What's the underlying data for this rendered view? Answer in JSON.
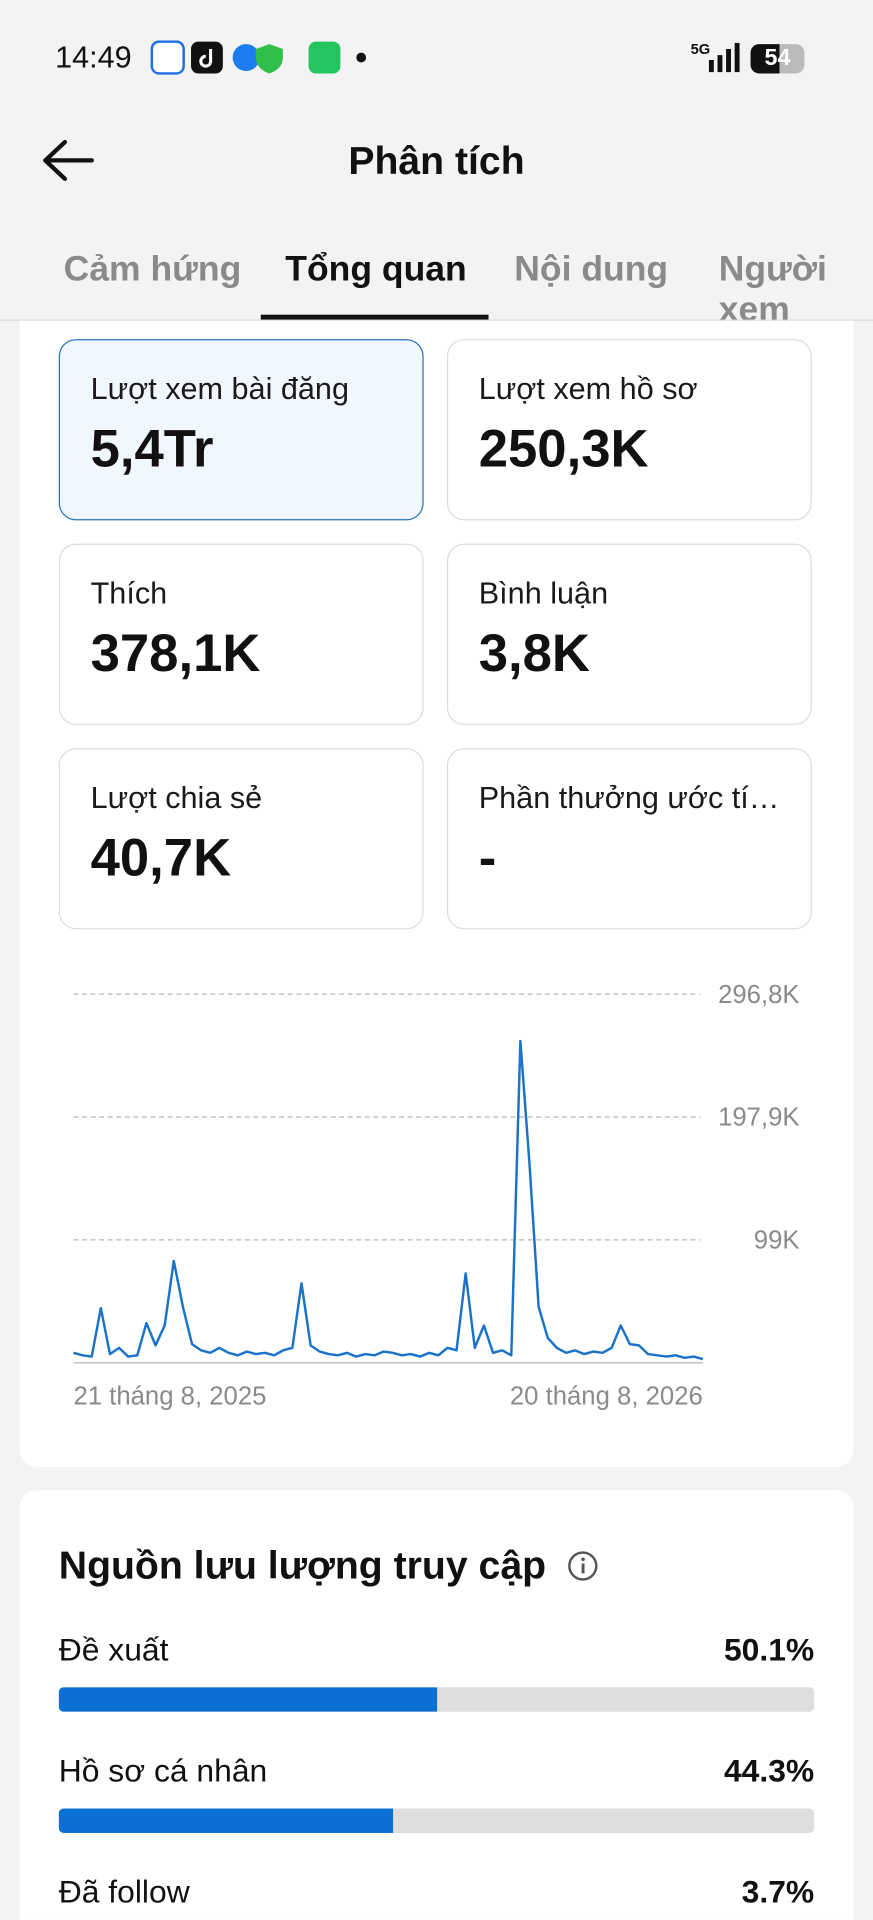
{
  "status_bar": {
    "time": "14:49",
    "network": "5G",
    "battery": "54"
  },
  "header": {
    "title": "Phân tích"
  },
  "tabs": {
    "items": [
      "Cảm hứng",
      "Tổng quan",
      "Nội dung",
      "Người xem"
    ],
    "active": 1
  },
  "cards": {
    "selected": 0,
    "items": [
      {
        "label": "Lượt xem bài đăng",
        "value": "5,4Tr"
      },
      {
        "label": "Lượt xem hồ sơ",
        "value": "250,3K"
      },
      {
        "label": "Thích",
        "value": "378,1K"
      },
      {
        "label": "Bình luận",
        "value": "3,8K"
      },
      {
        "label": "Lượt chia sẻ",
        "value": "40,7K"
      },
      {
        "label": "Phần thưởng ước tí…",
        "value": "-"
      }
    ]
  },
  "chart_data": {
    "type": "line",
    "color": "#1a73c8",
    "grid": true,
    "ylim": [
      0,
      296800
    ],
    "yticks": [
      {
        "value": 99000,
        "label": "99K"
      },
      {
        "value": 197900,
        "label": "197,9K"
      },
      {
        "value": 296800,
        "label": "296,8K"
      }
    ],
    "categories": [
      "21 tháng 8, 2025",
      null,
      null,
      null,
      null,
      null,
      null,
      null,
      null,
      null,
      null,
      null,
      null,
      null,
      null,
      null,
      null,
      null,
      null,
      null,
      null,
      null,
      null,
      null,
      null,
      null,
      null,
      null,
      null,
      null,
      null,
      null,
      null,
      null,
      null,
      null,
      null,
      null,
      null,
      null,
      null,
      null,
      null,
      null,
      null,
      null,
      null,
      null,
      null,
      null,
      null,
      null,
      null,
      null,
      null,
      null,
      null,
      null,
      null,
      null,
      null,
      null,
      null,
      null,
      null,
      null,
      null,
      null,
      null,
      "20 tháng 8, 2026"
    ],
    "values": [
      8000,
      6000,
      5000,
      44000,
      7000,
      12000,
      5000,
      6000,
      32000,
      14000,
      30000,
      82000,
      45000,
      15000,
      10000,
      8000,
      12000,
      8000,
      6000,
      9000,
      7000,
      8000,
      6000,
      10000,
      12000,
      64000,
      14000,
      9000,
      7000,
      6000,
      8000,
      5000,
      7000,
      6000,
      9000,
      8000,
      6000,
      7000,
      5000,
      8000,
      6000,
      12000,
      10000,
      72000,
      12000,
      30000,
      8000,
      10000,
      6000,
      259000,
      160000,
      45000,
      20000,
      12000,
      8000,
      10000,
      7000,
      9000,
      8000,
      12000,
      30000,
      15000,
      14000,
      7000,
      6000,
      5000,
      6000,
      4000,
      5000,
      3000
    ]
  },
  "traffic": {
    "title": "Nguồn lưu lượng truy cập",
    "xlim": [
      0,
      100
    ],
    "items": [
      {
        "label": "Đề xuất",
        "value": 50.1,
        "value_label": "50.1%"
      },
      {
        "label": "Hồ sơ cá nhân",
        "value": 44.3,
        "value_label": "44.3%"
      },
      {
        "label": "Đã follow",
        "value": 3.7,
        "value_label": "3.7%"
      }
    ]
  }
}
